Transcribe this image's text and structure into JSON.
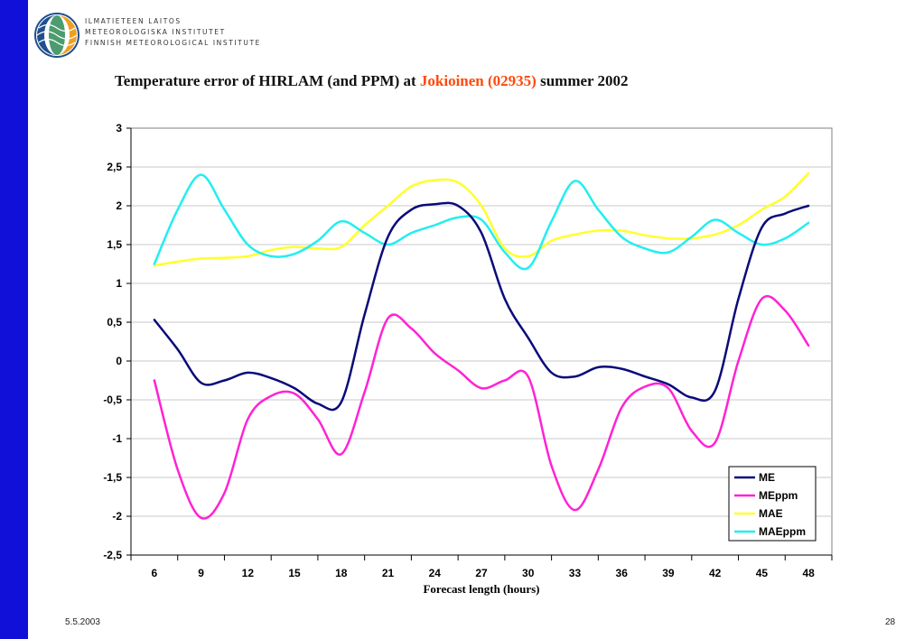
{
  "institute": {
    "line1": "ILMATIETEEN LAITOS",
    "line2": "METEOROLOGISKA INSTITUTET",
    "line3": "FINNISH METEOROLOGICAL INSTITUTE",
    "logo_colors": [
      "#1f4f8f",
      "#2e8b57",
      "#f0a020"
    ]
  },
  "title": {
    "prefix": "Temperature error of HIRLAM (and PPM) at ",
    "highlight": "Jokioinen (02935)",
    "suffix": " summer 2002",
    "highlight_color": "#ff4a0a"
  },
  "footer": {
    "date": "5.5.2003",
    "page": "28"
  },
  "chart_data": {
    "type": "line",
    "xlabel": "Forecast length (hours)",
    "ylabel": "",
    "x": [
      6,
      7.5,
      9,
      10.5,
      12,
      13.5,
      15,
      16.5,
      18,
      19.5,
      21,
      22.5,
      24,
      25.5,
      27,
      28.5,
      30,
      31.5,
      33,
      34.5,
      36,
      37.5,
      39,
      40.5,
      42,
      43.5,
      45,
      46.5,
      48
    ],
    "xticks": [
      "6",
      "9",
      "12",
      "15",
      "18",
      "21",
      "24",
      "27",
      "30",
      "33",
      "36",
      "39",
      "42",
      "45",
      "48"
    ],
    "ylim": [
      -2.5,
      3
    ],
    "yticks": [
      "3",
      "2,5",
      "2",
      "1,5",
      "1",
      "0,5",
      "0",
      "-0,5",
      "-1",
      "-1,5",
      "-2",
      "-2,5"
    ],
    "grid": true,
    "legend_position": "bottom-right",
    "series": [
      {
        "name": "ME",
        "color": "#0a0a7a",
        "values": [
          0.53,
          0.15,
          -0.28,
          -0.25,
          -0.15,
          -0.22,
          -0.35,
          -0.55,
          -0.53,
          0.6,
          1.6,
          1.95,
          2.02,
          2.0,
          1.65,
          0.8,
          0.3,
          -0.15,
          -0.2,
          -0.08,
          -0.1,
          -0.2,
          -0.3,
          -0.47,
          -0.38,
          0.8,
          1.72,
          1.9,
          2.0
        ]
      },
      {
        "name": "MEppm",
        "color": "#ff22d4",
        "values": [
          -0.25,
          -1.4,
          -2.02,
          -1.7,
          -0.75,
          -0.45,
          -0.42,
          -0.75,
          -1.2,
          -0.4,
          0.55,
          0.42,
          0.1,
          -0.12,
          -0.35,
          -0.25,
          -0.2,
          -1.35,
          -1.92,
          -1.4,
          -0.6,
          -0.33,
          -0.35,
          -0.9,
          -1.05,
          0.0,
          0.8,
          0.65,
          0.2
        ]
      },
      {
        "name": "MAE",
        "color": "#ffff2e",
        "values": [
          1.23,
          1.28,
          1.32,
          1.33,
          1.35,
          1.43,
          1.47,
          1.45,
          1.47,
          1.75,
          2.0,
          2.25,
          2.33,
          2.3,
          2.0,
          1.45,
          1.35,
          1.55,
          1.63,
          1.68,
          1.68,
          1.62,
          1.58,
          1.58,
          1.63,
          1.75,
          1.95,
          2.12,
          2.42
        ]
      },
      {
        "name": "MAEppm",
        "color": "#22eef0",
        "values": [
          1.25,
          1.95,
          2.4,
          1.95,
          1.5,
          1.35,
          1.38,
          1.55,
          1.8,
          1.65,
          1.5,
          1.65,
          1.75,
          1.85,
          1.82,
          1.4,
          1.2,
          1.8,
          2.32,
          1.95,
          1.6,
          1.45,
          1.4,
          1.6,
          1.82,
          1.65,
          1.5,
          1.58,
          1.78
        ]
      }
    ]
  }
}
